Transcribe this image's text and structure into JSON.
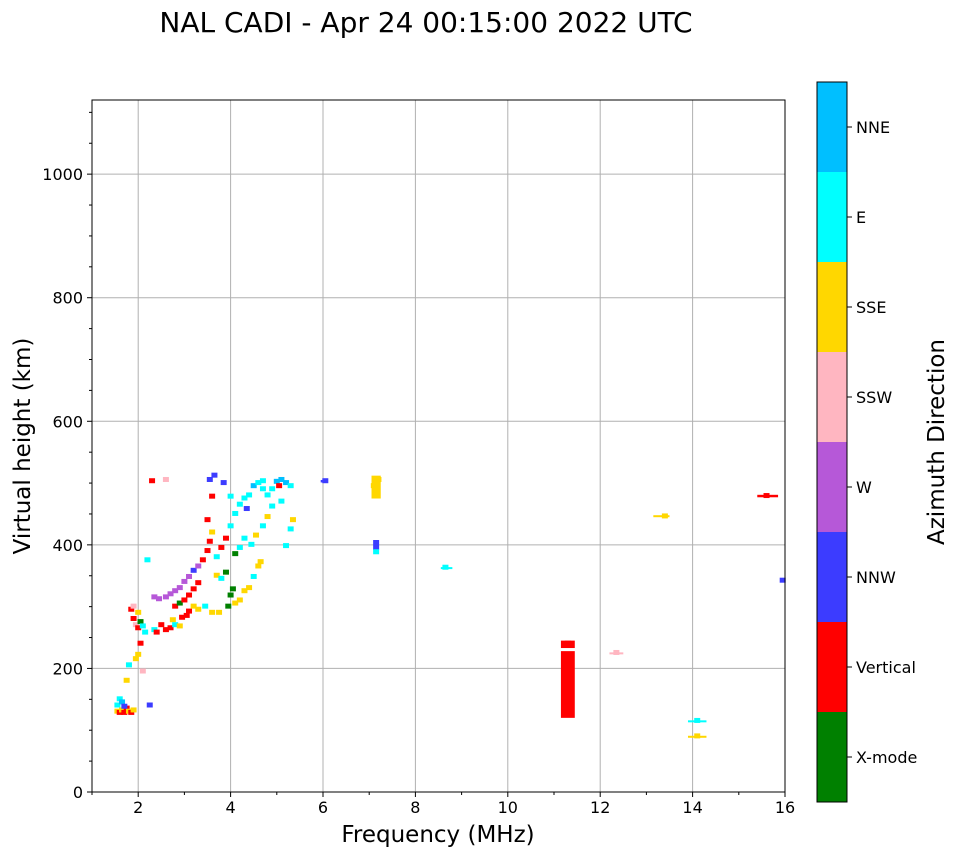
{
  "chart_data": {
    "type": "scatter",
    "title": "NAL CADI - Apr 24 00:15:00 2022 UTC",
    "xlabel": "Frequency (MHz)",
    "ylabel": "Virtual height (km)",
    "xlim": [
      1,
      16
    ],
    "ylim": [
      0,
      1120
    ],
    "xticks": [
      2,
      4,
      6,
      8,
      10,
      12,
      14,
      16
    ],
    "yticks": [
      0,
      200,
      400,
      600,
      800,
      1000
    ],
    "grid": true,
    "colorbar": {
      "label": "Azimuth Direction",
      "categories": [
        {
          "name": "X-mode",
          "color": "#008000"
        },
        {
          "name": "Vertical",
          "color": "#ff0000"
        },
        {
          "name": "NNW",
          "color": "#3c3cff"
        },
        {
          "name": "W",
          "color": "#b658d8"
        },
        {
          "name": "SSW",
          "color": "#ffb6c1"
        },
        {
          "name": "SSE",
          "color": "#ffd700"
        },
        {
          "name": "E",
          "color": "#00ffff"
        },
        {
          "name": "NNE",
          "color": "#00bfff"
        }
      ]
    },
    "points": [
      {
        "f": 1.55,
        "h": 130,
        "d": "Yellow"
      },
      {
        "f": 1.6,
        "h": 128,
        "d": "Vertical"
      },
      {
        "f": 1.65,
        "h": 132,
        "d": "SSE"
      },
      {
        "f": 1.7,
        "h": 128,
        "d": "Vertical"
      },
      {
        "f": 1.75,
        "h": 135,
        "d": "Vertical"
      },
      {
        "f": 1.8,
        "h": 130,
        "d": "SSE"
      },
      {
        "f": 1.85,
        "h": 128,
        "d": "Vertical"
      },
      {
        "f": 1.9,
        "h": 132,
        "d": "SSE"
      },
      {
        "f": 1.55,
        "h": 140,
        "d": "E"
      },
      {
        "f": 1.6,
        "h": 150,
        "d": "E"
      },
      {
        "f": 1.65,
        "h": 145,
        "d": "NNE"
      },
      {
        "f": 1.7,
        "h": 138,
        "d": "NNW"
      },
      {
        "f": 1.75,
        "h": 180,
        "d": "SSE"
      },
      {
        "f": 1.8,
        "h": 205,
        "d": "E"
      },
      {
        "f": 1.95,
        "h": 215,
        "d": "SSE"
      },
      {
        "f": 2.0,
        "h": 222,
        "d": "SSE"
      },
      {
        "f": 2.1,
        "h": 195,
        "d": "SSW"
      },
      {
        "f": 2.05,
        "h": 240,
        "d": "Vertical"
      },
      {
        "f": 1.85,
        "h": 295,
        "d": "Vertical"
      },
      {
        "f": 1.9,
        "h": 280,
        "d": "Vertical"
      },
      {
        "f": 1.95,
        "h": 270,
        "d": "SSW"
      },
      {
        "f": 2.0,
        "h": 265,
        "d": "Vertical"
      },
      {
        "f": 2.05,
        "h": 275,
        "d": "X-mode"
      },
      {
        "f": 2.1,
        "h": 268,
        "d": "E"
      },
      {
        "f": 2.15,
        "h": 258,
        "d": "E"
      },
      {
        "f": 1.9,
        "h": 300,
        "d": "SSW"
      },
      {
        "f": 2.0,
        "h": 290,
        "d": "SSE"
      },
      {
        "f": 2.35,
        "h": 262,
        "d": "E"
      },
      {
        "f": 2.4,
        "h": 258,
        "d": "Vertical"
      },
      {
        "f": 2.5,
        "h": 270,
        "d": "Vertical"
      },
      {
        "f": 2.6,
        "h": 262,
        "d": "Vertical"
      },
      {
        "f": 2.7,
        "h": 265,
        "d": "Vertical"
      },
      {
        "f": 2.75,
        "h": 278,
        "d": "SSE"
      },
      {
        "f": 2.8,
        "h": 270,
        "d": "E"
      },
      {
        "f": 2.9,
        "h": 268,
        "d": "SSE"
      },
      {
        "f": 2.95,
        "h": 282,
        "d": "Vertical"
      },
      {
        "f": 3.05,
        "h": 285,
        "d": "Vertical"
      },
      {
        "f": 3.1,
        "h": 292,
        "d": "Vertical"
      },
      {
        "f": 3.2,
        "h": 300,
        "d": "SSE"
      },
      {
        "f": 3.3,
        "h": 295,
        "d": "SSE"
      },
      {
        "f": 3.45,
        "h": 300,
        "d": "E"
      },
      {
        "f": 3.6,
        "h": 290,
        "d": "SSE"
      },
      {
        "f": 3.75,
        "h": 290,
        "d": "SSE"
      },
      {
        "f": 2.35,
        "h": 315,
        "d": "W"
      },
      {
        "f": 2.45,
        "h": 312,
        "d": "W"
      },
      {
        "f": 2.6,
        "h": 315,
        "d": "W"
      },
      {
        "f": 2.7,
        "h": 320,
        "d": "W"
      },
      {
        "f": 2.8,
        "h": 325,
        "d": "W"
      },
      {
        "f": 2.9,
        "h": 330,
        "d": "W"
      },
      {
        "f": 3.0,
        "h": 340,
        "d": "W"
      },
      {
        "f": 3.1,
        "h": 348,
        "d": "W"
      },
      {
        "f": 3.2,
        "h": 358,
        "d": "NNW"
      },
      {
        "f": 3.3,
        "h": 365,
        "d": "W"
      },
      {
        "f": 2.8,
        "h": 300,
        "d": "Vertical"
      },
      {
        "f": 2.9,
        "h": 305,
        "d": "X-mode"
      },
      {
        "f": 3.0,
        "h": 310,
        "d": "Vertical"
      },
      {
        "f": 3.1,
        "h": 318,
        "d": "Vertical"
      },
      {
        "f": 3.2,
        "h": 328,
        "d": "Vertical"
      },
      {
        "f": 3.3,
        "h": 338,
        "d": "Vertical"
      },
      {
        "f": 3.4,
        "h": 375,
        "d": "Vertical"
      },
      {
        "f": 3.5,
        "h": 390,
        "d": "Vertical"
      },
      {
        "f": 3.55,
        "h": 405,
        "d": "Vertical"
      },
      {
        "f": 3.6,
        "h": 420,
        "d": "SSE"
      },
      {
        "f": 3.5,
        "h": 440,
        "d": "Vertical"
      },
      {
        "f": 3.7,
        "h": 350,
        "d": "SSE"
      },
      {
        "f": 3.8,
        "h": 345,
        "d": "E"
      },
      {
        "f": 3.9,
        "h": 355,
        "d": "X-mode"
      },
      {
        "f": 4.0,
        "h": 318,
        "d": "X-mode"
      },
      {
        "f": 4.05,
        "h": 328,
        "d": "X-mode"
      },
      {
        "f": 3.95,
        "h": 300,
        "d": "X-mode"
      },
      {
        "f": 4.1,
        "h": 305,
        "d": "SSE"
      },
      {
        "f": 4.2,
        "h": 310,
        "d": "SSE"
      },
      {
        "f": 4.3,
        "h": 325,
        "d": "SSE"
      },
      {
        "f": 4.4,
        "h": 330,
        "d": "SSE"
      },
      {
        "f": 4.5,
        "h": 348,
        "d": "E"
      },
      {
        "f": 4.6,
        "h": 365,
        "d": "SSE"
      },
      {
        "f": 4.65,
        "h": 372,
        "d": "SSE"
      },
      {
        "f": 3.7,
        "h": 380,
        "d": "E"
      },
      {
        "f": 3.8,
        "h": 395,
        "d": "Vertical"
      },
      {
        "f": 3.9,
        "h": 410,
        "d": "Vertical"
      },
      {
        "f": 4.0,
        "h": 430,
        "d": "E"
      },
      {
        "f": 4.1,
        "h": 450,
        "d": "E"
      },
      {
        "f": 4.2,
        "h": 465,
        "d": "E"
      },
      {
        "f": 4.3,
        "h": 475,
        "d": "E"
      },
      {
        "f": 4.35,
        "h": 458,
        "d": "NNW"
      },
      {
        "f": 4.4,
        "h": 480,
        "d": "E"
      },
      {
        "f": 4.5,
        "h": 495,
        "d": "NNE"
      },
      {
        "f": 4.6,
        "h": 500,
        "d": "E"
      },
      {
        "f": 4.7,
        "h": 490,
        "d": "E"
      },
      {
        "f": 4.8,
        "h": 480,
        "d": "E"
      },
      {
        "f": 4.9,
        "h": 490,
        "d": "E"
      },
      {
        "f": 5.0,
        "h": 502,
        "d": "NNE"
      },
      {
        "f": 5.1,
        "h": 505,
        "d": "NNE"
      },
      {
        "f": 5.2,
        "h": 500,
        "d": "NNE"
      },
      {
        "f": 5.3,
        "h": 495,
        "d": "E"
      },
      {
        "f": 5.35,
        "h": 440,
        "d": "SSE"
      },
      {
        "f": 5.3,
        "h": 425,
        "d": "E"
      },
      {
        "f": 5.2,
        "h": 398,
        "d": "E"
      },
      {
        "f": 4.1,
        "h": 385,
        "d": "X-mode"
      },
      {
        "f": 4.2,
        "h": 395,
        "d": "E"
      },
      {
        "f": 4.3,
        "h": 410,
        "d": "E"
      },
      {
        "f": 4.45,
        "h": 400,
        "d": "E"
      },
      {
        "f": 4.55,
        "h": 415,
        "d": "SSE"
      },
      {
        "f": 4.7,
        "h": 430,
        "d": "E"
      },
      {
        "f": 4.8,
        "h": 445,
        "d": "SSE"
      },
      {
        "f": 4.9,
        "h": 462,
        "d": "E"
      },
      {
        "f": 5.1,
        "h": 470,
        "d": "E"
      },
      {
        "f": 3.6,
        "h": 478,
        "d": "Vertical"
      },
      {
        "f": 3.85,
        "h": 500,
        "d": "NNW"
      },
      {
        "f": 3.55,
        "h": 505,
        "d": "NNW"
      },
      {
        "f": 2.3,
        "h": 503,
        "d": "Vertical"
      },
      {
        "f": 2.6,
        "h": 505,
        "d": "SSW"
      },
      {
        "f": 2.2,
        "h": 375,
        "d": "E"
      },
      {
        "f": 2.25,
        "h": 140,
        "d": "NNW"
      },
      {
        "f": 3.65,
        "h": 512,
        "d": "NNW"
      },
      {
        "f": 4.0,
        "h": 478,
        "d": "E"
      },
      {
        "f": 4.7,
        "h": 503,
        "d": "E"
      },
      {
        "f": 5.05,
        "h": 495,
        "d": "Vertical"
      },
      {
        "f": 6.05,
        "h": 503,
        "d": "NNW"
      },
      {
        "f": 7.1,
        "h": 495,
        "d": "SSE"
      },
      {
        "f": 7.15,
        "h": 482,
        "d": "SSE"
      },
      {
        "f": 7.2,
        "h": 505,
        "d": "SSE"
      },
      {
        "f": 7.15,
        "h": 403,
        "d": "NNW"
      },
      {
        "f": 7.15,
        "h": 395,
        "d": "NNW"
      },
      {
        "f": 7.15,
        "h": 388,
        "d": "E"
      },
      {
        "f": 8.65,
        "h": 363,
        "d": "E"
      },
      {
        "f": 11.3,
        "h": 240,
        "d": "Vertical"
      },
      {
        "f": 11.3,
        "h": 200,
        "d": "Vertical"
      },
      {
        "f": 11.3,
        "h": 160,
        "d": "Vertical"
      },
      {
        "f": 11.3,
        "h": 125,
        "d": "Vertical"
      },
      {
        "f": 12.35,
        "h": 225,
        "d": "SSW"
      },
      {
        "f": 13.4,
        "h": 446,
        "d": "SSE"
      },
      {
        "f": 14.1,
        "h": 115,
        "d": "E"
      },
      {
        "f": 14.1,
        "h": 90,
        "d": "SSE"
      },
      {
        "f": 15.6,
        "h": 479,
        "d": "Vertical"
      },
      {
        "f": 15.95,
        "h": 342,
        "d": "NNW"
      }
    ],
    "segments": [
      {
        "f0": 11.15,
        "f1": 11.45,
        "h0": 120,
        "h1": 228,
        "d": "Vertical"
      },
      {
        "f0": 11.15,
        "f1": 11.45,
        "h0": 233,
        "h1": 245,
        "d": "Vertical"
      },
      {
        "f0": 7.05,
        "f1": 7.25,
        "h0": 475,
        "h1": 512,
        "d": "SSE"
      },
      {
        "f0": 15.4,
        "f1": 15.85,
        "h0": 477,
        "h1": 481,
        "d": "Vertical"
      },
      {
        "f0": 13.15,
        "f1": 13.5,
        "h0": 445,
        "h1": 448,
        "d": "SSE"
      },
      {
        "f0": 13.9,
        "f1": 14.3,
        "h0": 113,
        "h1": 116,
        "d": "E"
      },
      {
        "f0": 13.9,
        "f1": 14.3,
        "h0": 88,
        "h1": 91,
        "d": "SSE"
      },
      {
        "f0": 12.2,
        "f1": 12.5,
        "h0": 223,
        "h1": 226,
        "d": "SSW"
      },
      {
        "f0": 8.55,
        "f1": 8.8,
        "h0": 361,
        "h1": 364,
        "d": "E"
      },
      {
        "f0": 5.95,
        "f1": 6.1,
        "h0": 501,
        "h1": 505,
        "d": "NNW"
      }
    ]
  }
}
